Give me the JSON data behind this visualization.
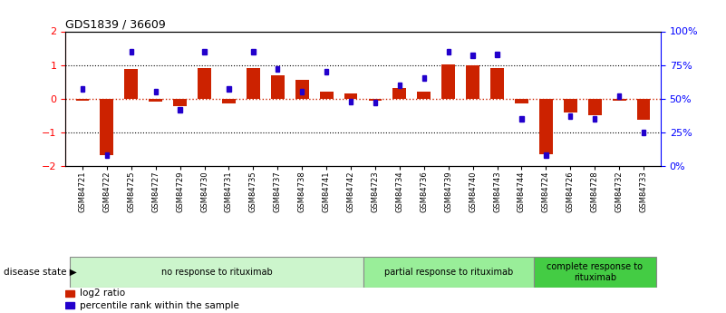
{
  "title": "GDS1839 / 36609",
  "samples": [
    "GSM84721",
    "GSM84722",
    "GSM84725",
    "GSM84727",
    "GSM84729",
    "GSM84730",
    "GSM84731",
    "GSM84735",
    "GSM84737",
    "GSM84738",
    "GSM84741",
    "GSM84742",
    "GSM84723",
    "GSM84734",
    "GSM84736",
    "GSM84739",
    "GSM84740",
    "GSM84743",
    "GSM84744",
    "GSM84724",
    "GSM84726",
    "GSM84728",
    "GSM84732",
    "GSM84733"
  ],
  "log2_ratio": [
    -0.05,
    -1.68,
    0.88,
    -0.08,
    -0.22,
    0.9,
    -0.15,
    0.9,
    0.7,
    0.55,
    0.2,
    0.15,
    -0.05,
    0.32,
    0.22,
    1.02,
    1.0,
    0.92,
    -0.15,
    -1.65,
    -0.42,
    -0.5,
    -0.05,
    -0.62
  ],
  "percentile_rank": [
    57,
    8,
    85,
    55,
    42,
    85,
    57,
    85,
    72,
    55,
    70,
    48,
    47,
    60,
    65,
    85,
    82,
    83,
    35,
    8,
    37,
    35,
    52,
    25
  ],
  "groups": [
    {
      "label": "no response to rituximab",
      "start": 0,
      "end": 12,
      "color": "#ccf5cc"
    },
    {
      "label": "partial response to rituximab",
      "start": 12,
      "end": 19,
      "color": "#99ee99"
    },
    {
      "label": "complete response to\nrituximab",
      "start": 19,
      "end": 24,
      "color": "#44cc44"
    }
  ],
  "ylim_left": [
    -2,
    2
  ],
  "ylim_right": [
    0,
    100
  ],
  "yticks_left": [
    -2,
    -1,
    0,
    1,
    2
  ],
  "yticks_right": [
    0,
    25,
    50,
    75,
    100
  ],
  "ytick_labels_right": [
    "0%",
    "25%",
    "50%",
    "75%",
    "100%"
  ],
  "bar_color": "#cc2200",
  "dot_color": "#2200cc",
  "legend_log2": "log2 ratio",
  "legend_pct": "percentile rank within the sample",
  "disease_state_label": "disease state",
  "bar_width": 0.55
}
